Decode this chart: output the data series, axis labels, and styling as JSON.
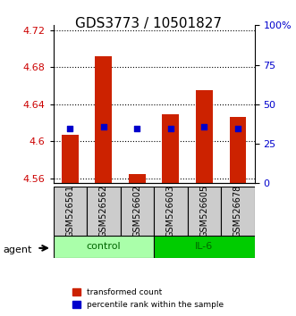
{
  "title": "GDS3773 / 10501827",
  "samples": [
    "GSM526561",
    "GSM526562",
    "GSM526602",
    "GSM526603",
    "GSM526605",
    "GSM526678"
  ],
  "groups": [
    "control",
    "control",
    "control",
    "IL-6",
    "IL-6",
    "IL-6"
  ],
  "red_values": [
    4.607,
    4.692,
    4.565,
    4.629,
    4.655,
    4.626
  ],
  "red_bottoms": [
    4.555,
    4.555,
    4.555,
    4.555,
    4.555,
    4.555
  ],
  "blue_values": [
    4.614,
    4.616,
    4.614,
    4.614,
    4.616,
    4.614
  ],
  "ylim_left": [
    4.555,
    4.725
  ],
  "ylim_right": [
    0,
    100
  ],
  "yticks_left": [
    4.56,
    4.6,
    4.64,
    4.68,
    4.72
  ],
  "yticks_right": [
    0,
    25,
    50,
    75,
    100
  ],
  "ytick_labels_right": [
    "0",
    "25",
    "50",
    "75",
    "100%"
  ],
  "red_color": "#cc2200",
  "blue_color": "#0000cc",
  "bar_width": 0.5,
  "group_colors": {
    "control": "#aaffaa",
    "IL-6": "#00cc00"
  },
  "group_label_colors": {
    "control": "#006600",
    "IL-6": "#006600"
  },
  "xlabel_color": "#cc0000",
  "right_axis_color": "#0000cc",
  "background_plot": "#ffffff",
  "background_sample": "#cccccc",
  "grid_color": "#000000",
  "legend_red": "transformed count",
  "legend_blue": "percentile rank within the sample"
}
